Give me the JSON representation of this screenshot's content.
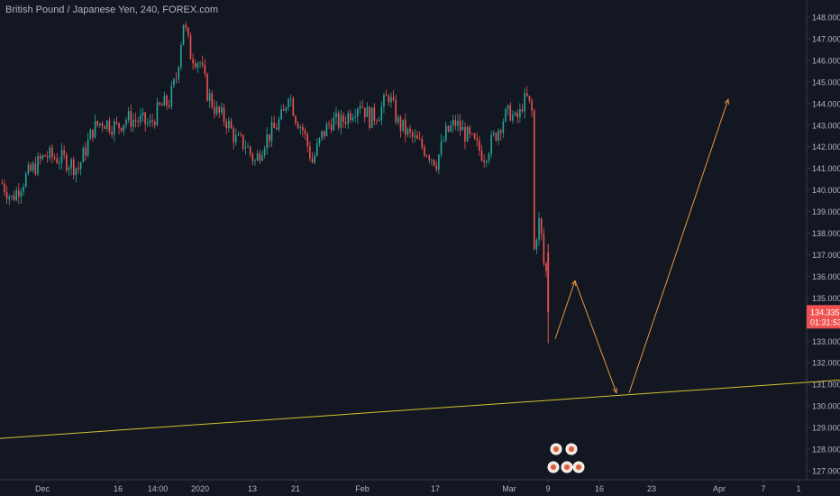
{
  "header": {
    "title": "British Pound / Japanese Yen, 240, FOREX.com"
  },
  "colors": {
    "background": "#131722",
    "up": "#26a69a",
    "down": "#ef5350",
    "axis_text": "#b2b5be",
    "axis_line": "#363a45",
    "trendline": "#d4c22e",
    "projection": "#e8963a",
    "price_badge": "#ef5350"
  },
  "price_badge": {
    "price": "134.335",
    "countdown": "01:31:53"
  },
  "chart_data": {
    "type": "candlestick",
    "title": "British Pound / Japanese Yen, 240, FOREX.com",
    "x_ticks": [
      "Dec",
      "16",
      "14:00",
      "2020",
      "13",
      "21",
      "Feb",
      "17",
      "Mar",
      "9",
      "16",
      "23",
      "Apr",
      "7",
      "1"
    ],
    "y_ticks": [
      "148.000",
      "147.000",
      "146.000",
      "145.000",
      "144.000",
      "143.000",
      "142.000",
      "141.000",
      "140.000",
      "139.000",
      "138.000",
      "137.000",
      "136.000",
      "135.000",
      "134.000",
      "133.000",
      "132.000",
      "131.000",
      "130.000",
      "129.000",
      "128.000",
      "127.000"
    ],
    "ylim": [
      126.6,
      148.4
    ],
    "xlim": [
      0,
      230
    ],
    "last_price": 134.335,
    "anchors": [
      [
        0,
        140.3
      ],
      [
        4,
        139.6
      ],
      [
        10,
        140.6
      ],
      [
        18,
        141.6
      ],
      [
        26,
        141.4
      ],
      [
        32,
        141.0
      ],
      [
        38,
        142.8
      ],
      [
        42,
        143.2
      ],
      [
        48,
        142.9
      ],
      [
        52,
        143.3
      ],
      [
        58,
        143.2
      ],
      [
        62,
        143.0
      ],
      [
        66,
        143.8
      ],
      [
        70,
        144.1
      ],
      [
        73,
        145.2
      ],
      [
        76,
        147.8
      ],
      [
        79,
        146.3
      ],
      [
        83,
        145.9
      ],
      [
        86,
        144.5
      ],
      [
        90,
        143.6
      ],
      [
        94,
        143.2
      ],
      [
        98,
        142.3
      ],
      [
        102,
        142.1
      ],
      [
        106,
        141.3
      ],
      [
        110,
        142.3
      ],
      [
        114,
        142.8
      ],
      [
        118,
        143.5
      ],
      [
        120,
        144.6
      ],
      [
        123,
        143.4
      ],
      [
        126,
        142.8
      ],
      [
        130,
        141.3
      ],
      [
        134,
        142.5
      ],
      [
        138,
        143.2
      ],
      [
        142,
        143.1
      ],
      [
        146,
        143.6
      ],
      [
        150,
        144.1
      ],
      [
        154,
        143.3
      ],
      [
        158,
        143.6
      ],
      [
        162,
        144.4
      ],
      [
        166,
        143.1
      ],
      [
        170,
        142.6
      ],
      [
        174,
        142.2
      ],
      [
        178,
        141.8
      ],
      [
        182,
        141.3
      ],
      [
        186,
        142.6
      ],
      [
        190,
        143.1
      ],
      [
        194,
        142.6
      ],
      [
        198,
        142.1
      ],
      [
        202,
        141.6
      ],
      [
        206,
        142.4
      ],
      [
        210,
        143.3
      ],
      [
        213,
        143.6
      ],
      [
        215,
        143.2
      ],
      [
        217,
        143.5
      ],
      [
        218,
        144.0
      ],
      [
        220,
        144.2
      ],
      [
        222,
        143.6
      ],
      [
        223,
        137.2
      ],
      [
        224,
        138.0
      ],
      [
        225,
        138.5
      ],
      [
        226,
        137.8
      ],
      [
        227,
        136.6
      ],
      [
        228,
        136.2
      ]
    ],
    "trendline": {
      "from": [
        0,
        128.5
      ],
      "to": [
        932,
        131.2
      ]
    },
    "projection": [
      [
        616,
        133.1
      ],
      [
        638,
        135.8
      ],
      [
        684,
        130.6
      ],
      [
        698,
        130.6
      ],
      [
        808,
        144.2
      ]
    ]
  }
}
